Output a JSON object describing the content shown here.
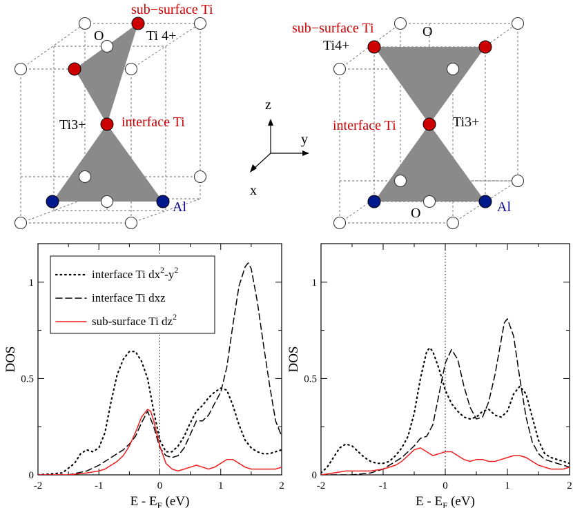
{
  "diagram": {
    "colors": {
      "red_atom": "#cc0000",
      "blue_atom": "#001a8c",
      "open_atom": "#ffffff",
      "octahedron": "#8a8a8a"
    },
    "left": {
      "sub_surface_label": "sub−surface Ti",
      "o_label": "O",
      "ti4_label": "Ti 4+",
      "ti3_label": "Ti3+",
      "interface_label": "interface Ti",
      "al_label": "Al"
    },
    "right": {
      "sub_surface_label": "sub−surface Ti",
      "o_top_label": "O",
      "ti4_label": "Ti4+",
      "interface_label": "interface Ti",
      "ti3_label": "Ti3+",
      "o_bottom_label": "O",
      "al_label": "Al"
    },
    "axes_labels": {
      "z": "z",
      "y": "y",
      "x": "x"
    }
  },
  "chart_data": [
    {
      "type": "line",
      "xlabel": "E - E",
      "xlabel_sub": "F",
      "xlabel_unit": " (eV)",
      "ylabel": "DOS",
      "xlim": [
        -2,
        2
      ],
      "ylim": [
        0,
        1.2
      ],
      "xticks": [
        -2,
        -1,
        0,
        1,
        2
      ],
      "yticks": [
        0,
        0.5,
        1
      ],
      "ytick_labels": [
        "0",
        "0.5",
        "1"
      ],
      "fermi_line_x": 0,
      "legend": [
        {
          "text": "interface Ti dx",
          "sup": "2",
          "text2": "-y",
          "sup2": "2",
          "style": "dotted",
          "color": "#000000"
        },
        {
          "text": "interface Ti dxz",
          "sup": "",
          "text2": "",
          "sup2": "",
          "style": "dashed",
          "color": "#000000"
        },
        {
          "text": "sub-surface Ti dz",
          "sup": "2",
          "text2": "",
          "sup2": "",
          "style": "solid",
          "color": "#ee1c1c"
        }
      ],
      "series": [
        {
          "style": "dotted",
          "color": "#000000",
          "x": [
            -2.0,
            -1.6,
            -1.4,
            -1.3,
            -1.2,
            -1.1,
            -1.0,
            -0.9,
            -0.8,
            -0.7,
            -0.6,
            -0.5,
            -0.4,
            -0.3,
            -0.2,
            -0.1,
            0.0,
            0.1,
            0.2,
            0.3,
            0.4,
            0.5,
            0.6,
            0.7,
            0.8,
            0.9,
            1.0,
            1.1,
            1.2,
            1.3,
            1.4,
            1.5,
            1.6,
            1.7,
            1.8,
            1.9,
            2.0
          ],
          "y": [
            0.0,
            0.01,
            0.06,
            0.11,
            0.13,
            0.12,
            0.14,
            0.22,
            0.38,
            0.52,
            0.6,
            0.64,
            0.64,
            0.59,
            0.5,
            0.33,
            0.18,
            0.12,
            0.12,
            0.15,
            0.2,
            0.27,
            0.33,
            0.36,
            0.4,
            0.43,
            0.45,
            0.44,
            0.36,
            0.26,
            0.18,
            0.14,
            0.12,
            0.11,
            0.11,
            0.12,
            0.13
          ]
        },
        {
          "style": "dashed",
          "color": "#000000",
          "x": [
            -2.0,
            -1.5,
            -1.2,
            -1.0,
            -0.9,
            -0.8,
            -0.7,
            -0.6,
            -0.5,
            -0.4,
            -0.3,
            -0.2,
            -0.1,
            0.0,
            0.1,
            0.2,
            0.3,
            0.4,
            0.5,
            0.6,
            0.7,
            0.8,
            0.9,
            1.0,
            1.1,
            1.2,
            1.3,
            1.4,
            1.45,
            1.5,
            1.6,
            1.7,
            1.8,
            1.9,
            2.0
          ],
          "y": [
            0.0,
            0.0,
            0.02,
            0.05,
            0.07,
            0.09,
            0.11,
            0.13,
            0.16,
            0.2,
            0.27,
            0.33,
            0.25,
            0.14,
            0.1,
            0.09,
            0.1,
            0.14,
            0.21,
            0.28,
            0.28,
            0.31,
            0.37,
            0.43,
            0.56,
            0.78,
            0.98,
            1.08,
            1.1,
            1.07,
            0.9,
            0.68,
            0.47,
            0.28,
            0.2
          ]
        },
        {
          "style": "solid",
          "color": "#ee1c1c",
          "x": [
            -2.0,
            -1.5,
            -1.2,
            -1.0,
            -0.9,
            -0.8,
            -0.7,
            -0.6,
            -0.5,
            -0.4,
            -0.3,
            -0.2,
            -0.15,
            -0.1,
            0.0,
            0.1,
            0.2,
            0.3,
            0.4,
            0.5,
            0.6,
            0.7,
            0.8,
            0.9,
            1.0,
            1.1,
            1.2,
            1.3,
            1.4,
            1.5,
            1.6,
            1.7,
            1.8,
            1.9,
            2.0
          ],
          "y": [
            0.0,
            0.0,
            0.01,
            0.02,
            0.03,
            0.05,
            0.07,
            0.1,
            0.15,
            0.22,
            0.3,
            0.34,
            0.33,
            0.28,
            0.15,
            0.06,
            0.03,
            0.02,
            0.03,
            0.04,
            0.05,
            0.04,
            0.03,
            0.04,
            0.06,
            0.08,
            0.08,
            0.06,
            0.04,
            0.03,
            0.03,
            0.03,
            0.03,
            0.03,
            0.04
          ]
        }
      ]
    },
    {
      "type": "line",
      "xlabel": "E - E",
      "xlabel_sub": "F",
      "xlabel_unit": " (eV)",
      "ylabel": "DOS",
      "xlim": [
        -2,
        2
      ],
      "ylim": [
        0,
        1.2
      ],
      "xticks": [
        -2,
        -1,
        0,
        1,
        2
      ],
      "yticks": [
        0,
        0.5,
        1
      ],
      "ytick_labels": [
        "0",
        "0.5",
        "1"
      ],
      "fermi_line_x": 0,
      "series": [
        {
          "style": "dotted",
          "color": "#000000",
          "x": [
            -2.0,
            -1.9,
            -1.8,
            -1.7,
            -1.6,
            -1.5,
            -1.4,
            -1.3,
            -1.2,
            -1.1,
            -1.0,
            -0.9,
            -0.8,
            -0.7,
            -0.6,
            -0.5,
            -0.4,
            -0.3,
            -0.25,
            -0.2,
            -0.1,
            0.0,
            0.1,
            0.2,
            0.3,
            0.4,
            0.5,
            0.6,
            0.7,
            0.8,
            0.9,
            1.0,
            1.1,
            1.2,
            1.3,
            1.4,
            1.5,
            1.6,
            1.7,
            1.8,
            1.9,
            2.0
          ],
          "y": [
            0.01,
            0.04,
            0.09,
            0.14,
            0.16,
            0.15,
            0.12,
            0.09,
            0.07,
            0.06,
            0.06,
            0.07,
            0.1,
            0.14,
            0.2,
            0.32,
            0.5,
            0.64,
            0.66,
            0.64,
            0.55,
            0.44,
            0.37,
            0.33,
            0.3,
            0.29,
            0.3,
            0.33,
            0.34,
            0.31,
            0.3,
            0.33,
            0.42,
            0.46,
            0.42,
            0.3,
            0.18,
            0.11,
            0.09,
            0.08,
            0.07,
            0.06
          ]
        },
        {
          "style": "dashed",
          "color": "#000000",
          "x": [
            -2.0,
            -1.5,
            -1.2,
            -1.0,
            -0.9,
            -0.8,
            -0.7,
            -0.6,
            -0.5,
            -0.4,
            -0.3,
            -0.2,
            -0.1,
            0.0,
            0.1,
            0.2,
            0.3,
            0.4,
            0.5,
            0.6,
            0.7,
            0.8,
            0.9,
            0.95,
            1.0,
            1.1,
            1.2,
            1.3,
            1.4,
            1.5,
            1.6,
            1.7,
            1.8,
            1.9,
            2.0
          ],
          "y": [
            0.0,
            0.0,
            0.01,
            0.03,
            0.05,
            0.07,
            0.09,
            0.12,
            0.15,
            0.19,
            0.2,
            0.26,
            0.42,
            0.58,
            0.65,
            0.6,
            0.46,
            0.35,
            0.29,
            0.3,
            0.38,
            0.52,
            0.7,
            0.79,
            0.81,
            0.72,
            0.5,
            0.3,
            0.17,
            0.11,
            0.08,
            0.07,
            0.06,
            0.05,
            0.04
          ]
        },
        {
          "style": "solid",
          "color": "#ee1c1c",
          "x": [
            -2.0,
            -1.8,
            -1.6,
            -1.4,
            -1.2,
            -1.0,
            -0.8,
            -0.7,
            -0.6,
            -0.5,
            -0.4,
            -0.3,
            -0.2,
            -0.1,
            0.0,
            0.1,
            0.2,
            0.3,
            0.4,
            0.5,
            0.6,
            0.7,
            0.8,
            0.9,
            1.0,
            1.1,
            1.2,
            1.3,
            1.4,
            1.5,
            1.6,
            1.7,
            1.8,
            1.9,
            2.0
          ],
          "y": [
            0.0,
            0.01,
            0.02,
            0.02,
            0.02,
            0.03,
            0.05,
            0.07,
            0.1,
            0.13,
            0.14,
            0.12,
            0.1,
            0.11,
            0.12,
            0.12,
            0.1,
            0.08,
            0.07,
            0.08,
            0.08,
            0.07,
            0.07,
            0.08,
            0.09,
            0.1,
            0.1,
            0.09,
            0.07,
            0.05,
            0.04,
            0.03,
            0.03,
            0.03,
            0.04
          ]
        }
      ]
    }
  ]
}
